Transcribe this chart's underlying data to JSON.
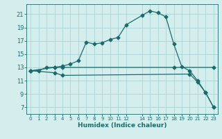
{
  "xlabel": "Humidex (Indice chaleur)",
  "background_color": "#d4eeee",
  "grid_color": "#aad4d4",
  "line_color": "#1a6b6b",
  "xlim": [
    -0.5,
    23.5
  ],
  "ylim": [
    6,
    22.5
  ],
  "xticks": [
    0,
    1,
    2,
    3,
    4,
    5,
    6,
    7,
    8,
    9,
    10,
    11,
    12,
    14,
    15,
    16,
    17,
    18,
    19,
    20,
    21,
    22,
    23
  ],
  "yticks": [
    7,
    9,
    11,
    13,
    15,
    17,
    19,
    21
  ],
  "curve1_x": [
    0,
    1,
    2,
    3,
    4,
    5,
    6,
    7,
    8,
    9,
    10,
    11,
    12,
    14,
    15,
    16,
    17,
    18,
    19,
    20,
    21,
    22,
    23
  ],
  "curve1_y": [
    12.5,
    12.5,
    13,
    13,
    13.2,
    13.5,
    14.0,
    16.8,
    16.5,
    16.7,
    17.2,
    17.5,
    19.4,
    20.8,
    21.5,
    21.2,
    20.6,
    16.5,
    13.1,
    12.5,
    11.0,
    9.2,
    7.0
  ],
  "curve2_x": [
    0,
    3,
    4,
    18,
    23
  ],
  "curve2_y": [
    12.5,
    13.0,
    13.0,
    13.0,
    13.0
  ],
  "curve3_x": [
    0,
    3,
    4,
    20,
    21,
    22,
    23
  ],
  "curve3_y": [
    12.5,
    12.2,
    11.8,
    12.0,
    10.8,
    9.2,
    7.0
  ],
  "marker": "D",
  "markersize": 2.5
}
